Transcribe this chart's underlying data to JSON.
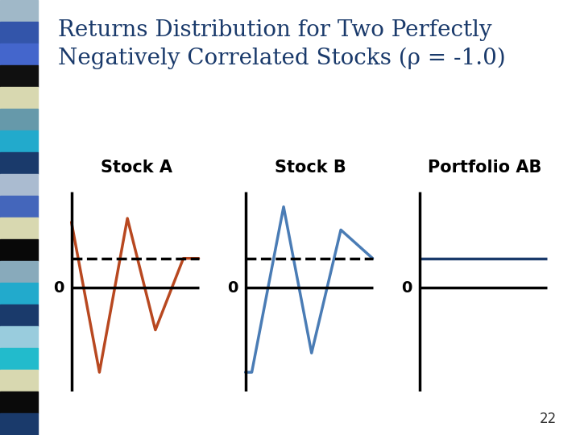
{
  "title_line1": "Returns Distribution for Two Perfectly",
  "title_line2": "Negatively Correlated Stocks (ρ = -1.0)",
  "title_color": "#1a3a6b",
  "title_fontsize": 20,
  "background_color": "#ffffff",
  "panels": [
    "Stock A",
    "Stock B",
    "Portfolio AB"
  ],
  "panel_label_fontsize": 15,
  "panel_label_color": "#000000",
  "stock_a_color": "#b84820",
  "stock_b_color": "#4a7cb5",
  "portfolio_color": "#1a3a6b",
  "zero_label_fontsize": 14,
  "page_number": "22",
  "left_strip_colors": [
    "#a0b8c8",
    "#3355aa",
    "#4466cc",
    "#101010",
    "#d8d8b0",
    "#6699aa",
    "#22aacc",
    "#1a3a6b",
    "#aabbd0",
    "#4466bb",
    "#d8d8b0",
    "#080808",
    "#88aabb",
    "#22aacc",
    "#1a3a6b",
    "#99ccdd",
    "#22bbcc",
    "#d8d8b0",
    "#0a0a0a",
    "#1a3a6b"
  ],
  "stock_a_x": [
    0.0,
    0.22,
    0.44,
    0.66,
    0.88,
    1.0
  ],
  "stock_a_y": [
    0.85,
    -1.1,
    0.9,
    -0.55,
    0.38,
    0.38
  ],
  "stock_b_x": [
    0.0,
    0.05,
    0.3,
    0.52,
    0.75,
    1.0
  ],
  "stock_b_y": [
    -1.1,
    -1.1,
    1.05,
    -0.85,
    0.75,
    0.38
  ],
  "mean_level": 0.38,
  "ylim_min": -1.35,
  "ylim_max": 1.25
}
